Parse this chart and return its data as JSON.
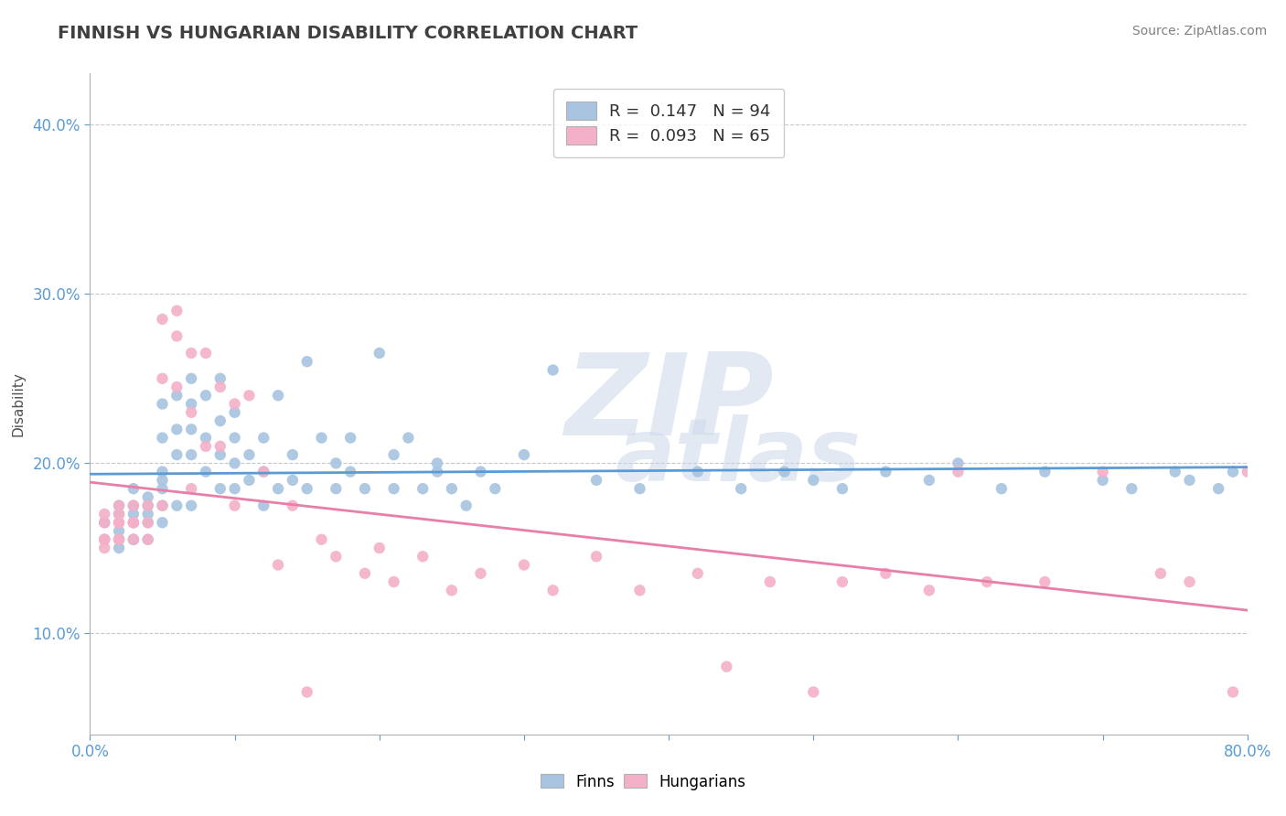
{
  "title": "FINNISH VS HUNGARIAN DISABILITY CORRELATION CHART",
  "source": "Source: ZipAtlas.com",
  "ylabel": "Disability",
  "xlim": [
    0.0,
    0.8
  ],
  "ylim": [
    0.04,
    0.43
  ],
  "yticks": [
    0.1,
    0.2,
    0.3,
    0.4
  ],
  "ytick_labels": [
    "10.0%",
    "20.0%",
    "30.0%",
    "40.0%"
  ],
  "xticks": [
    0.0,
    0.1,
    0.2,
    0.3,
    0.4,
    0.5,
    0.6,
    0.7,
    0.8
  ],
  "xtick_labels": [
    "0.0%",
    "",
    "",
    "",
    "",
    "",
    "",
    "",
    "80.0%"
  ],
  "r_finn": 0.147,
  "n_finn": 94,
  "r_hung": 0.093,
  "n_hung": 65,
  "finn_color": "#a8c4e0",
  "hung_color": "#f4b0c8",
  "finn_line_color": "#5b9bd5",
  "hung_line_color": "#e87fa8",
  "background_color": "#ffffff",
  "grid_color": "#c8c8c8",
  "tick_color": "#5b9bd5",
  "title_color": "#404040",
  "source_color": "#808080",
  "watermark_color": "#ccd8ea",
  "finn_x": [
    0.01,
    0.01,
    0.02,
    0.02,
    0.02,
    0.02,
    0.02,
    0.03,
    0.03,
    0.03,
    0.03,
    0.03,
    0.03,
    0.03,
    0.04,
    0.04,
    0.04,
    0.04,
    0.04,
    0.05,
    0.05,
    0.05,
    0.05,
    0.05,
    0.05,
    0.05,
    0.06,
    0.06,
    0.06,
    0.06,
    0.07,
    0.07,
    0.07,
    0.07,
    0.07,
    0.08,
    0.08,
    0.08,
    0.09,
    0.09,
    0.09,
    0.09,
    0.1,
    0.1,
    0.1,
    0.1,
    0.11,
    0.11,
    0.12,
    0.12,
    0.12,
    0.13,
    0.13,
    0.14,
    0.14,
    0.15,
    0.15,
    0.16,
    0.17,
    0.17,
    0.18,
    0.18,
    0.19,
    0.2,
    0.21,
    0.21,
    0.22,
    0.23,
    0.24,
    0.24,
    0.25,
    0.26,
    0.27,
    0.28,
    0.3,
    0.32,
    0.35,
    0.38,
    0.42,
    0.45,
    0.48,
    0.5,
    0.52,
    0.55,
    0.58,
    0.6,
    0.63,
    0.66,
    0.7,
    0.72,
    0.75,
    0.76,
    0.78,
    0.79
  ],
  "finn_y": [
    0.155,
    0.165,
    0.155,
    0.17,
    0.16,
    0.175,
    0.15,
    0.165,
    0.175,
    0.155,
    0.17,
    0.165,
    0.185,
    0.155,
    0.175,
    0.165,
    0.18,
    0.17,
    0.155,
    0.235,
    0.195,
    0.215,
    0.175,
    0.19,
    0.165,
    0.185,
    0.22,
    0.205,
    0.24,
    0.175,
    0.25,
    0.22,
    0.235,
    0.205,
    0.175,
    0.215,
    0.195,
    0.24,
    0.225,
    0.205,
    0.25,
    0.185,
    0.23,
    0.2,
    0.215,
    0.185,
    0.205,
    0.19,
    0.215,
    0.195,
    0.175,
    0.24,
    0.185,
    0.205,
    0.19,
    0.26,
    0.185,
    0.215,
    0.2,
    0.185,
    0.215,
    0.195,
    0.185,
    0.265,
    0.205,
    0.185,
    0.215,
    0.185,
    0.195,
    0.2,
    0.185,
    0.175,
    0.195,
    0.185,
    0.205,
    0.255,
    0.19,
    0.185,
    0.195,
    0.185,
    0.195,
    0.19,
    0.185,
    0.195,
    0.19,
    0.2,
    0.185,
    0.195,
    0.19,
    0.185,
    0.195,
    0.19,
    0.185,
    0.195
  ],
  "hung_x": [
    0.01,
    0.01,
    0.01,
    0.01,
    0.01,
    0.02,
    0.02,
    0.02,
    0.02,
    0.02,
    0.02,
    0.03,
    0.03,
    0.03,
    0.03,
    0.04,
    0.04,
    0.04,
    0.05,
    0.05,
    0.05,
    0.06,
    0.06,
    0.06,
    0.07,
    0.07,
    0.07,
    0.08,
    0.08,
    0.09,
    0.09,
    0.1,
    0.1,
    0.11,
    0.12,
    0.13,
    0.14,
    0.15,
    0.16,
    0.17,
    0.19,
    0.2,
    0.21,
    0.23,
    0.25,
    0.27,
    0.3,
    0.32,
    0.35,
    0.38,
    0.42,
    0.44,
    0.47,
    0.5,
    0.52,
    0.55,
    0.58,
    0.6,
    0.62,
    0.66,
    0.7,
    0.74,
    0.76,
    0.79,
    0.8
  ],
  "hung_y": [
    0.165,
    0.155,
    0.17,
    0.155,
    0.15,
    0.165,
    0.175,
    0.155,
    0.17,
    0.155,
    0.165,
    0.165,
    0.175,
    0.155,
    0.165,
    0.175,
    0.155,
    0.165,
    0.285,
    0.25,
    0.175,
    0.29,
    0.275,
    0.245,
    0.265,
    0.23,
    0.185,
    0.265,
    0.21,
    0.245,
    0.21,
    0.235,
    0.175,
    0.24,
    0.195,
    0.14,
    0.175,
    0.065,
    0.155,
    0.145,
    0.135,
    0.15,
    0.13,
    0.145,
    0.125,
    0.135,
    0.14,
    0.125,
    0.145,
    0.125,
    0.135,
    0.08,
    0.13,
    0.065,
    0.13,
    0.135,
    0.125,
    0.195,
    0.13,
    0.13,
    0.195,
    0.135,
    0.13,
    0.065,
    0.195
  ]
}
